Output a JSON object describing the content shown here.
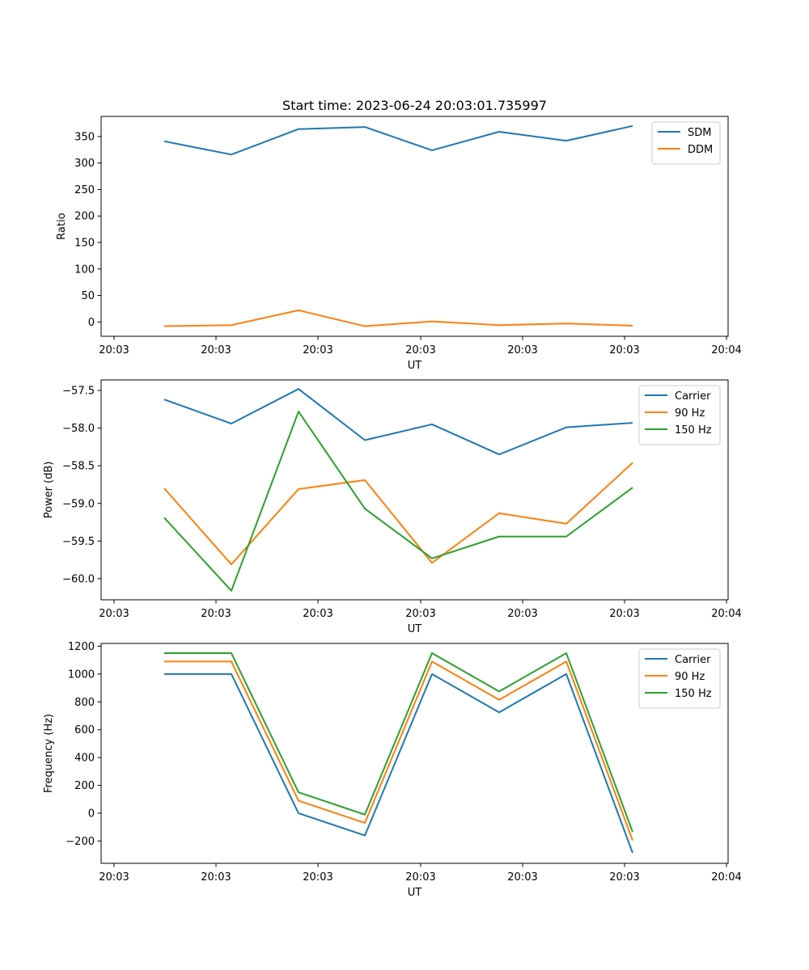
{
  "chart_data": [
    {
      "type": "line",
      "title": "Start time: 2023-06-24 20:03:01.735997",
      "xlabel": "UT",
      "ylabel": "Ratio",
      "x_tick_labels": [
        "20:03",
        "20:03",
        "20:03",
        "20:03",
        "20:03",
        "20:03",
        "20:04"
      ],
      "ylim": [
        -27,
        388
      ],
      "y_ticks": [
        0,
        50,
        100,
        150,
        200,
        250,
        300,
        350
      ],
      "y_tick_labels": [
        "0",
        "50",
        "100",
        "150",
        "200",
        "250",
        "300",
        "350"
      ],
      "legend_loc": "upper right",
      "colors": [
        "#1f77b4",
        "#ff7f0e"
      ],
      "series": [
        {
          "name": "SDM",
          "values": [
            341,
            316,
            364,
            368,
            324,
            359,
            342,
            370
          ]
        },
        {
          "name": "DDM",
          "values": [
            -8,
            -6,
            22,
            -8,
            1,
            -6,
            -3,
            -7
          ]
        }
      ]
    },
    {
      "type": "line",
      "title": "",
      "xlabel": "UT",
      "ylabel": "Power (dB)",
      "x_tick_labels": [
        "20:03",
        "20:03",
        "20:03",
        "20:03",
        "20:03",
        "20:03",
        "20:04"
      ],
      "ylim": [
        -60.28,
        -57.36
      ],
      "y_ticks": [
        -60.0,
        -59.5,
        -59.0,
        -58.5,
        -58.0,
        -57.5
      ],
      "y_tick_labels": [
        "−60.0",
        "−59.5",
        "−59.0",
        "−58.5",
        "−58.0",
        "−57.5"
      ],
      "legend_loc": "upper right",
      "colors": [
        "#1f77b4",
        "#ff7f0e",
        "#2ca02c"
      ],
      "series": [
        {
          "name": "Carrier",
          "values": [
            -57.62,
            -57.94,
            -57.48,
            -58.16,
            -57.95,
            -58.35,
            -57.99,
            -57.93
          ]
        },
        {
          "name": "90 Hz",
          "values": [
            -58.8,
            -59.81,
            -58.81,
            -58.69,
            -59.79,
            -59.13,
            -59.27,
            -58.46
          ]
        },
        {
          "name": "150 Hz",
          "values": [
            -59.19,
            -60.16,
            -57.78,
            -59.07,
            -59.73,
            -59.44,
            -59.44,
            -58.79
          ]
        }
      ]
    },
    {
      "type": "line",
      "title": "",
      "xlabel": "UT",
      "ylabel": "Frequency (Hz)",
      "x_tick_labels": [
        "20:03",
        "20:03",
        "20:03",
        "20:03",
        "20:03",
        "20:03",
        "20:04"
      ],
      "ylim": [
        -360,
        1220
      ],
      "y_ticks": [
        -200,
        0,
        200,
        400,
        600,
        800,
        1000,
        1200
      ],
      "y_tick_labels": [
        "−200",
        "0",
        "200",
        "400",
        "600",
        "800",
        "1000",
        "1200"
      ],
      "legend_loc": "upper right",
      "colors": [
        "#1f77b4",
        "#ff7f0e",
        "#2ca02c"
      ],
      "series": [
        {
          "name": "Carrier",
          "values": [
            1000,
            1000,
            0,
            -160,
            1000,
            725,
            1000,
            -285
          ]
        },
        {
          "name": "90 Hz",
          "values": [
            1090,
            1090,
            90,
            -70,
            1090,
            815,
            1090,
            -195
          ]
        },
        {
          "name": "150 Hz",
          "values": [
            1150,
            1150,
            150,
            -10,
            1150,
            875,
            1150,
            -135
          ]
        }
      ]
    }
  ]
}
